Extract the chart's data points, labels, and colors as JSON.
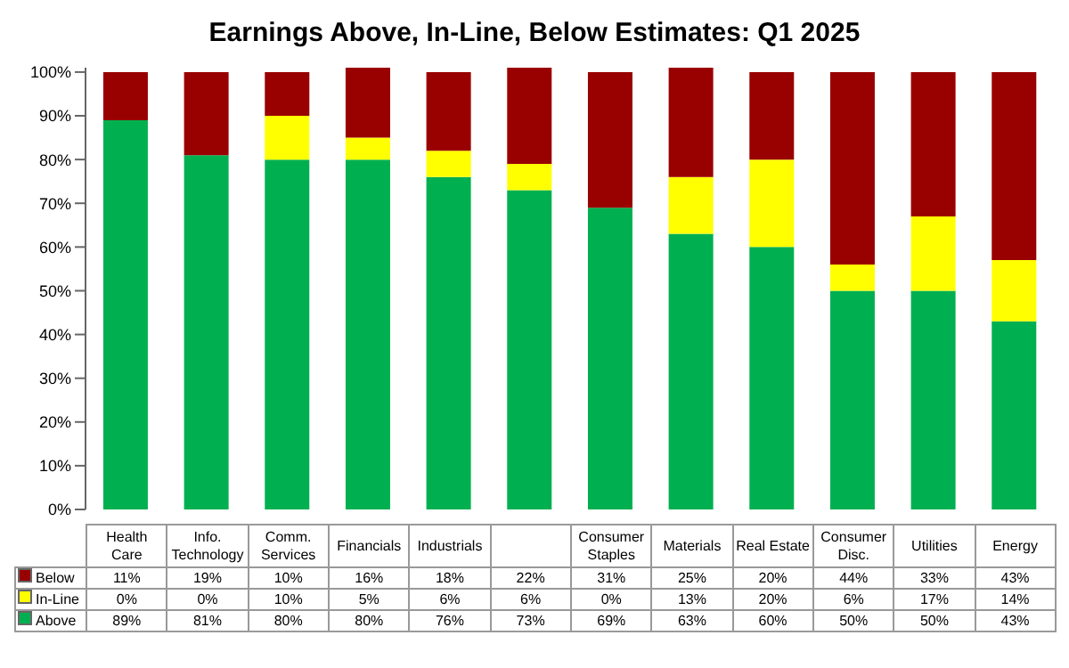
{
  "chart_data": {
    "type": "bar",
    "stacked": true,
    "title": "Earnings Above, In-Line, Below Estimates: Q1 2025",
    "categories": [
      "Health Care",
      "Info. Technology",
      "Comm. Services",
      "Financials",
      "Industrials",
      null,
      "Consumer Staples",
      "Materials",
      "Real Estate",
      "Consumer Disc.",
      "Utilities",
      "Energy"
    ],
    "series": [
      {
        "name": "Above",
        "color": "#00b050",
        "values": [
          89,
          81,
          80,
          80,
          76,
          73,
          69,
          63,
          60,
          50,
          50,
          43
        ],
        "value_labels": [
          "89%",
          "81%",
          "80%",
          "80%",
          "76%",
          "73%",
          "69%",
          "63%",
          "60%",
          "50%",
          "50%",
          "43%"
        ]
      },
      {
        "name": "In-Line",
        "color": "#ffff00",
        "values": [
          0,
          0,
          10,
          5,
          6,
          6,
          0,
          13,
          20,
          6,
          17,
          14
        ],
        "value_labels": [
          "0%",
          "0%",
          "10%",
          "5%",
          "6%",
          "6%",
          "0%",
          "13%",
          "20%",
          "6%",
          "17%",
          "14%"
        ]
      },
      {
        "name": "Below",
        "color": "#990000",
        "values": [
          11,
          19,
          10,
          16,
          18,
          22,
          31,
          25,
          20,
          44,
          33,
          43
        ],
        "value_labels": [
          "11%",
          "19%",
          "10%",
          "16%",
          "18%",
          "22%",
          "31%",
          "25%",
          "20%",
          "44%",
          "33%",
          "43%"
        ]
      }
    ],
    "ylim": [
      0,
      101
    ],
    "yticks": [
      {
        "value": 0,
        "label": "0%"
      },
      {
        "value": 10,
        "label": "10%"
      },
      {
        "value": 20,
        "label": "20%"
      },
      {
        "value": 30,
        "label": "30%"
      },
      {
        "value": 40,
        "label": "40%"
      },
      {
        "value": 50,
        "label": "50%"
      },
      {
        "value": 60,
        "label": "60%"
      },
      {
        "value": 70,
        "label": "70%"
      },
      {
        "value": 80,
        "label": "80%"
      },
      {
        "value": 90,
        "label": "90%"
      },
      {
        "value": 100,
        "label": "100%"
      }
    ],
    "grid": false,
    "legend": "bottom",
    "data_labels": true
  }
}
